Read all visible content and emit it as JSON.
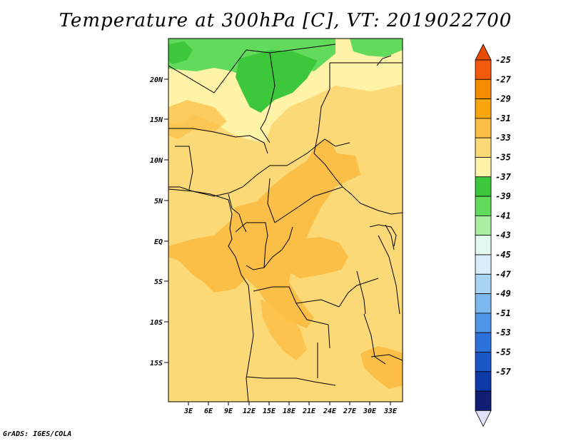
{
  "title": "Temperature at 300hPa [C], VT: 2019022700",
  "credit": "GrADS: IGES/COLA",
  "map": {
    "lat_labels": [
      "20N",
      "15N",
      "10N",
      "5N",
      "EQ",
      "5S",
      "10S",
      "15S"
    ],
    "lon_labels": [
      "3E",
      "6E",
      "9E",
      "12E",
      "15E",
      "18E",
      "21E",
      "24E",
      "27E",
      "30E",
      "33E"
    ]
  },
  "colorbar": {
    "labels": [
      "-25",
      "-27",
      "-29",
      "-31",
      "-33",
      "-35",
      "-37",
      "-39",
      "-41",
      "-43",
      "-45",
      "-47",
      "-49",
      "-51",
      "-53",
      "-55",
      "-57"
    ],
    "colors": [
      "#f15a0a",
      "#f68a00",
      "#f9a60e",
      "#fbbf47",
      "#fcd977",
      "#fff3a8",
      "#3dc83c",
      "#62db5d",
      "#a8eea0",
      "#e3f8f0",
      "#d8ecf9",
      "#a9d3f3",
      "#7db9ee",
      "#4f97e6",
      "#2c72da",
      "#1a56c6",
      "#0c3aa8",
      "#101e73"
    ],
    "top_arrow_color": "#e54c00",
    "bottom_arrow_color": "#dde2fa"
  }
}
